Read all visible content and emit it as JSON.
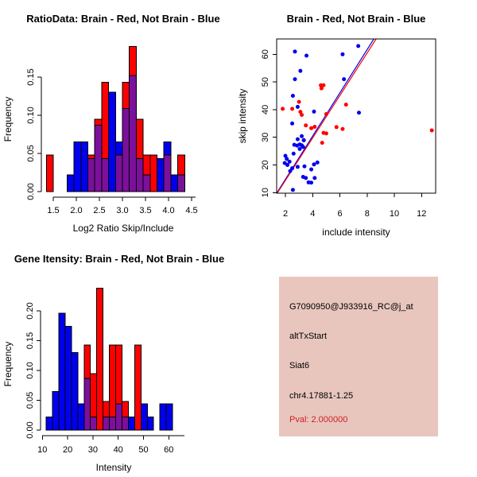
{
  "window": {
    "background": "#ffffff"
  },
  "colors": {
    "red": "#FF0000",
    "blue": "#0000EE",
    "overlap": "#7B109B",
    "axis": "#000000",
    "info_bg": "#E8C6BE",
    "pval_text": "#CC2222"
  },
  "chart_data": [
    {
      "id": "ratio_hist",
      "type": "bar",
      "title": "RatioData: Brain - Red, Not Brain - Blue",
      "xlabel": "Log2 Ratio Skip/Include",
      "ylabel": "Frequency",
      "bin_start": 1.35,
      "bin_width": 0.15,
      "xlim": [
        1.35,
        4.5
      ],
      "ylim": [
        0,
        0.19
      ],
      "grid": false,
      "xticks": {
        "values": [
          1.5,
          2.0,
          2.5,
          3.0,
          3.5,
          4.0,
          4.5
        ],
        "labels": [
          "1.5",
          "2.0",
          "2.5",
          "3.0",
          "3.5",
          "4.0",
          "4.5"
        ]
      },
      "yticks": {
        "values": [
          0.0,
          0.05,
          0.1,
          0.15
        ],
        "labels": [
          "0.00",
          "0.05",
          "0.10",
          "0.15"
        ]
      },
      "series": [
        {
          "name": "Brain (red)",
          "color_key": "red",
          "values": [
            0.048,
            0,
            0,
            0,
            0,
            0,
            0.048,
            0.095,
            0.143,
            0,
            0.048,
            0.143,
            0.19,
            0.095,
            0.048,
            0.048,
            0,
            0.048,
            0,
            0.048
          ]
        },
        {
          "name": "Not Brain (blue)",
          "color_key": "blue",
          "values": [
            0,
            0,
            0,
            0.022,
            0.065,
            0.065,
            0.043,
            0.087,
            0.043,
            0.13,
            0.065,
            0.109,
            0.152,
            0.043,
            0.022,
            0,
            0.043,
            0.065,
            0.022,
            0.022
          ]
        }
      ]
    },
    {
      "id": "scatter",
      "type": "scatter",
      "title": "Brain - Red, Not Brain - Blue",
      "xlabel": "include intensity",
      "ylabel": "skip intensity",
      "xlim": [
        1.36,
        13.0
      ],
      "ylim": [
        9.8,
        65.6
      ],
      "grid": false,
      "xticks": {
        "values": [
          2,
          4,
          6,
          8,
          10,
          12
        ],
        "labels": [
          "2",
          "4",
          "6",
          "8",
          "10",
          "12"
        ]
      },
      "yticks": {
        "values": [
          10,
          20,
          30,
          40,
          50,
          60
        ],
        "labels": [
          "10",
          "20",
          "30",
          "40",
          "50",
          "60"
        ]
      },
      "series": [
        {
          "name": "Brain (red)",
          "color_key": "red",
          "points": [
            [
              1.8,
              40.3
            ],
            [
              2.5,
              40.3
            ],
            [
              3.0,
              42.8
            ],
            [
              3.1,
              39.2
            ],
            [
              3.2,
              38.1
            ],
            [
              3.35,
              29.0
            ],
            [
              3.5,
              34.3
            ],
            [
              3.9,
              33.3
            ],
            [
              4.15,
              33.8
            ],
            [
              4.6,
              48.8
            ],
            [
              4.8,
              48.8
            ],
            [
              4.65,
              47.7
            ],
            [
              5.0,
              38.4
            ],
            [
              4.8,
              31.6
            ],
            [
              5.0,
              31.4
            ],
            [
              5.75,
              33.7
            ],
            [
              6.2,
              33.0
            ],
            [
              6.45,
              41.8
            ],
            [
              4.7,
              28.0
            ],
            [
              12.75,
              32.5
            ]
          ]
        },
        {
          "name": "Not Brain (blue)",
          "color_key": "blue",
          "points": [
            [
              2.7,
              61
            ],
            [
              3.55,
              59.5
            ],
            [
              6.2,
              60
            ],
            [
              7.35,
              63
            ],
            [
              3.1,
              54
            ],
            [
              2.7,
              51
            ],
            [
              6.3,
              51
            ],
            [
              2.55,
              45
            ],
            [
              2.9,
              41
            ],
            [
              4.1,
              39.3
            ],
            [
              7.4,
              38.9
            ],
            [
              2.5,
              35
            ],
            [
              3.2,
              30.4
            ],
            [
              2.9,
              29.3
            ],
            [
              3.35,
              28.9
            ],
            [
              3.05,
              27.4
            ],
            [
              2.65,
              27.3
            ],
            [
              2.85,
              27.0
            ],
            [
              3.2,
              27.1
            ],
            [
              3.3,
              26.5
            ],
            [
              3.05,
              25.8
            ],
            [
              2.6,
              24.1
            ],
            [
              2.0,
              23.3
            ],
            [
              2.1,
              22.2
            ],
            [
              1.95,
              20.7
            ],
            [
              2.15,
              20.0
            ],
            [
              2.3,
              21.2
            ],
            [
              2.5,
              18.8
            ],
            [
              2.35,
              17.8
            ],
            [
              2.9,
              19.3
            ],
            [
              3.4,
              19.5
            ],
            [
              4.1,
              20.2
            ],
            [
              4.35,
              20.9
            ],
            [
              3.9,
              18.4
            ],
            [
              3.3,
              15.7
            ],
            [
              3.5,
              15.3
            ],
            [
              4.15,
              15.3
            ],
            [
              3.7,
              13.7
            ],
            [
              3.9,
              13.6
            ],
            [
              2.55,
              11.0
            ]
          ]
        }
      ],
      "lines": [
        {
          "name": "fit-line-not-brain",
          "color_key": "blue",
          "from": [
            1.36,
            9.8
          ],
          "to": [
            8.5,
            65.6
          ]
        },
        {
          "name": "fit-line-brain",
          "color_key": "red",
          "from": [
            1.36,
            9.5
          ],
          "to": [
            8.67,
            65.6
          ]
        }
      ]
    },
    {
      "id": "gene_hist",
      "type": "bar",
      "title": "Gene Itensity: Brain - Red, Not Brain - Blue",
      "xlabel": "Intensity",
      "ylabel": "Frequency",
      "bin_start": 11.5,
      "bin_width": 2.5,
      "xlim": [
        11.5,
        61.5
      ],
      "ylim": [
        0,
        0.238
      ],
      "grid": false,
      "xticks": {
        "values": [
          10,
          20,
          30,
          40,
          50,
          60
        ],
        "labels": [
          "10",
          "20",
          "30",
          "40",
          "50",
          "60"
        ]
      },
      "yticks": {
        "values": [
          0.0,
          0.05,
          0.1,
          0.15,
          0.2
        ],
        "labels": [
          "0.00",
          "0.05",
          "0.10",
          "0.15",
          "0.20"
        ]
      },
      "series": [
        {
          "name": "Brain (red)",
          "color_key": "red",
          "values": [
            0,
            0,
            0,
            0,
            0,
            0,
            0.143,
            0.095,
            0.238,
            0.048,
            0.143,
            0.143,
            0.048,
            0,
            0.143,
            0,
            0,
            0,
            0,
            0
          ]
        },
        {
          "name": "Not Brain (blue)",
          "color_key": "blue",
          "values": [
            0.022,
            0.065,
            0.196,
            0.174,
            0.13,
            0.044,
            0.087,
            0.022,
            0,
            0.022,
            0.022,
            0.044,
            0.022,
            0.022,
            0,
            0.044,
            0.022,
            0,
            0.044,
            0.044
          ]
        }
      ]
    }
  ],
  "info_panel": {
    "probe": "G7090950@J933916_RC@j_at",
    "event": "altTxStart",
    "gene": "Siat6",
    "location": "chr4.17881-1.25",
    "pval": "Pval: 2.000000"
  }
}
